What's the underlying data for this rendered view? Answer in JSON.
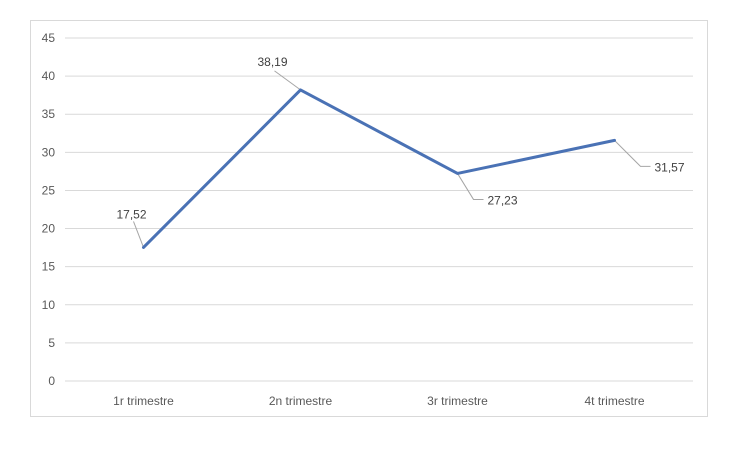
{
  "chart_data": {
    "type": "line",
    "categories": [
      "1r trimestre",
      "2n trimestre",
      "3r trimestre",
      "4t trimestre"
    ],
    "series": [
      {
        "values": [
          17.52,
          38.19,
          27.23,
          31.57
        ],
        "color": "#4a72b5"
      }
    ],
    "data_labels": [
      "17,52",
      "38,19",
      "27,23",
      "31,57"
    ],
    "y_ticks": [
      "0",
      "5",
      "10",
      "15",
      "20",
      "25",
      "30",
      "35",
      "40",
      "45"
    ],
    "ylim": [
      0,
      45
    ],
    "grid": true,
    "legend": "none"
  }
}
